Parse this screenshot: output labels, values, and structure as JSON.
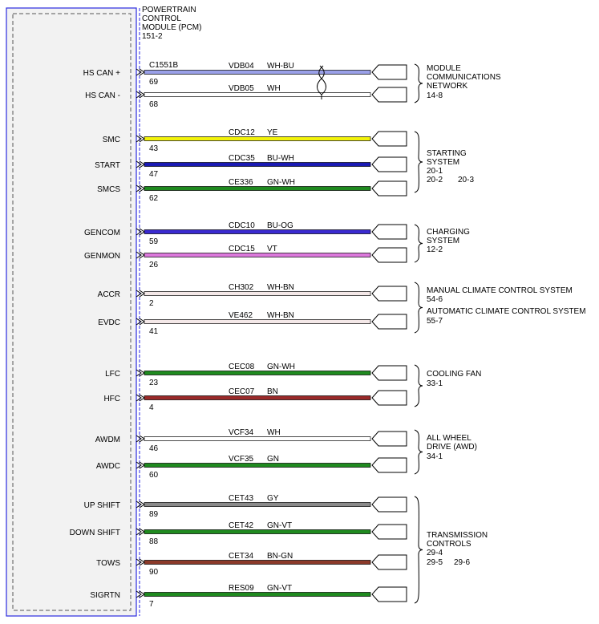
{
  "module": {
    "title_lines": [
      "POWERTRAIN",
      "CONTROL",
      "MODULE (PCM)",
      "151-2"
    ],
    "connector": "C1551B"
  },
  "colors": {
    "WH-BU": "#9aa0e8",
    "WH": "#ffffff",
    "YE": "#f2f20a",
    "BU-WH": "#1a1ab4",
    "GN-WH": "#1f8a1f",
    "BU-OG": "#3a2ad0",
    "VT": "#dc78dc",
    "WH-BN": "#f4e8e8",
    "BN": "#9a2a2a",
    "GN": "#1f8a1f",
    "GY": "#8a8a8a",
    "GN-VT": "#1f8a1f",
    "BN-GN": "#8c3a2a"
  },
  "circuits": [
    {
      "label": "HS CAN +",
      "pin": "69",
      "circuit": "VDB04",
      "color": "WH-BU"
    },
    {
      "label": "HS CAN -",
      "pin": "68",
      "circuit": "VDB05",
      "color": "WH"
    },
    {
      "label": "SMC",
      "pin": "43",
      "circuit": "CDC12",
      "color": "YE"
    },
    {
      "label": "START",
      "pin": "47",
      "circuit": "CDC35",
      "color": "BU-WH"
    },
    {
      "label": "SMCS",
      "pin": "62",
      "circuit": "CE336",
      "color": "GN-WH"
    },
    {
      "label": "GENCOM",
      "pin": "59",
      "circuit": "CDC10",
      "color": "BU-OG"
    },
    {
      "label": "GENMON",
      "pin": "26",
      "circuit": "CDC15",
      "color": "VT"
    },
    {
      "label": "ACCR",
      "pin": "2",
      "circuit": "CH302",
      "color": "WH-BN"
    },
    {
      "label": "EVDC",
      "pin": "41",
      "circuit": "VE462",
      "color": "WH-BN"
    },
    {
      "label": "LFC",
      "pin": "23",
      "circuit": "CEC08",
      "color": "GN-WH"
    },
    {
      "label": "HFC",
      "pin": "4",
      "circuit": "CEC07",
      "color": "BN"
    },
    {
      "label": "AWDM",
      "pin": "46",
      "circuit": "VCF34",
      "color": "WH"
    },
    {
      "label": "AWDC",
      "pin": "60",
      "circuit": "VCF35",
      "color": "GN"
    },
    {
      "label": "UP SHIFT",
      "pin": "89",
      "circuit": "CET43",
      "color": "GY"
    },
    {
      "label": "DOWN SHIFT",
      "pin": "88",
      "circuit": "CET42",
      "color": "GN-VT"
    },
    {
      "label": "TOWS",
      "pin": "90",
      "circuit": "CET34",
      "color": "BN-GN"
    },
    {
      "label": "SIGRTN",
      "pin": "7",
      "circuit": "RES09",
      "color": "GN-VT"
    }
  ],
  "destinations": [
    {
      "lines": [
        "MODULE",
        "COMMUNICATIONS",
        "NETWORK",
        "14-8"
      ]
    },
    {
      "lines": [
        "STARTING",
        "SYSTEM",
        "20-1",
        "20-2",
        "20-3"
      ]
    },
    {
      "lines": [
        "CHARGING",
        "SYSTEM",
        "12-2"
      ]
    },
    {
      "lines": [
        "MANUAL CLIMATE CONTROL SYSTEM",
        "54-6"
      ]
    },
    {
      "lines": [
        "AUTOMATIC CLIMATE CONTROL SYSTEM",
        "55-7"
      ]
    },
    {
      "lines": [
        "COOLING FAN",
        "33-1"
      ]
    },
    {
      "lines": [
        "ALL WHEEL",
        "DRIVE (AWD)",
        "34-1"
      ]
    },
    {
      "lines": [
        "TRANSMISSION",
        "CONTROLS",
        "29-4",
        "29-5",
        "29-6"
      ]
    }
  ]
}
